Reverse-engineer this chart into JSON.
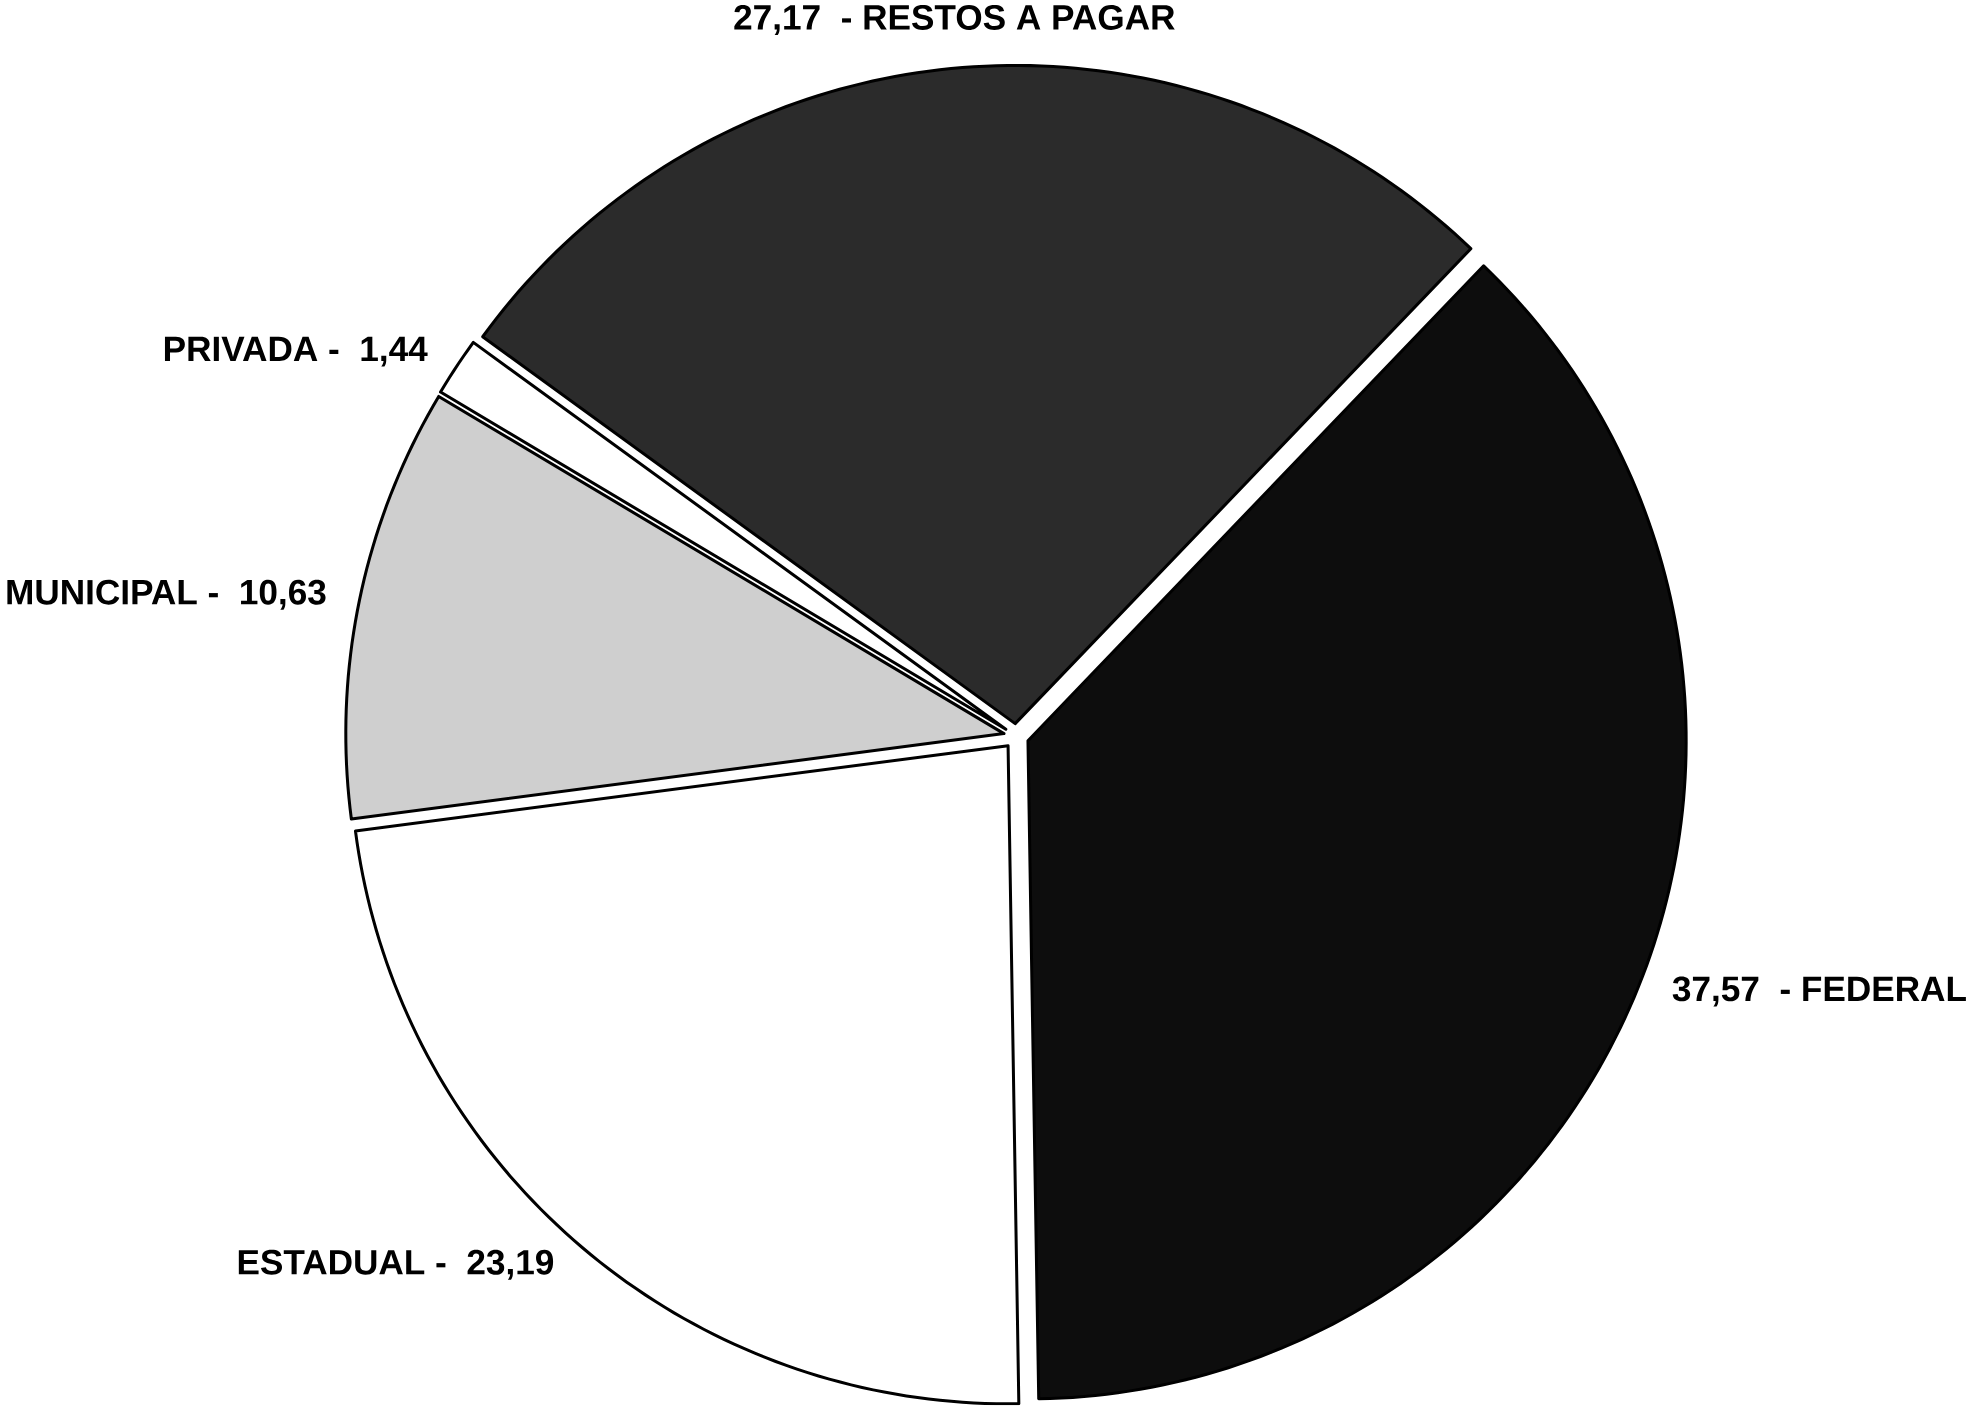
{
  "chart_data": {
    "type": "pie",
    "categories": [
      "- RESTOS A PAGAR",
      "- FEDERAL",
      "ESTADUAL -",
      "MUNICIPAL -",
      "PRIVADA -"
    ],
    "values": [
      27.17,
      37.57,
      23.19,
      10.63,
      1.44
    ],
    "value_labels": [
      "27,17",
      "37,57",
      "23,19",
      "10,63",
      "1,44"
    ],
    "colors": [
      "#2b2b2b",
      "#0d0d0d",
      "#ffffff",
      "#cfcfcf",
      "#ffffff"
    ]
  }
}
